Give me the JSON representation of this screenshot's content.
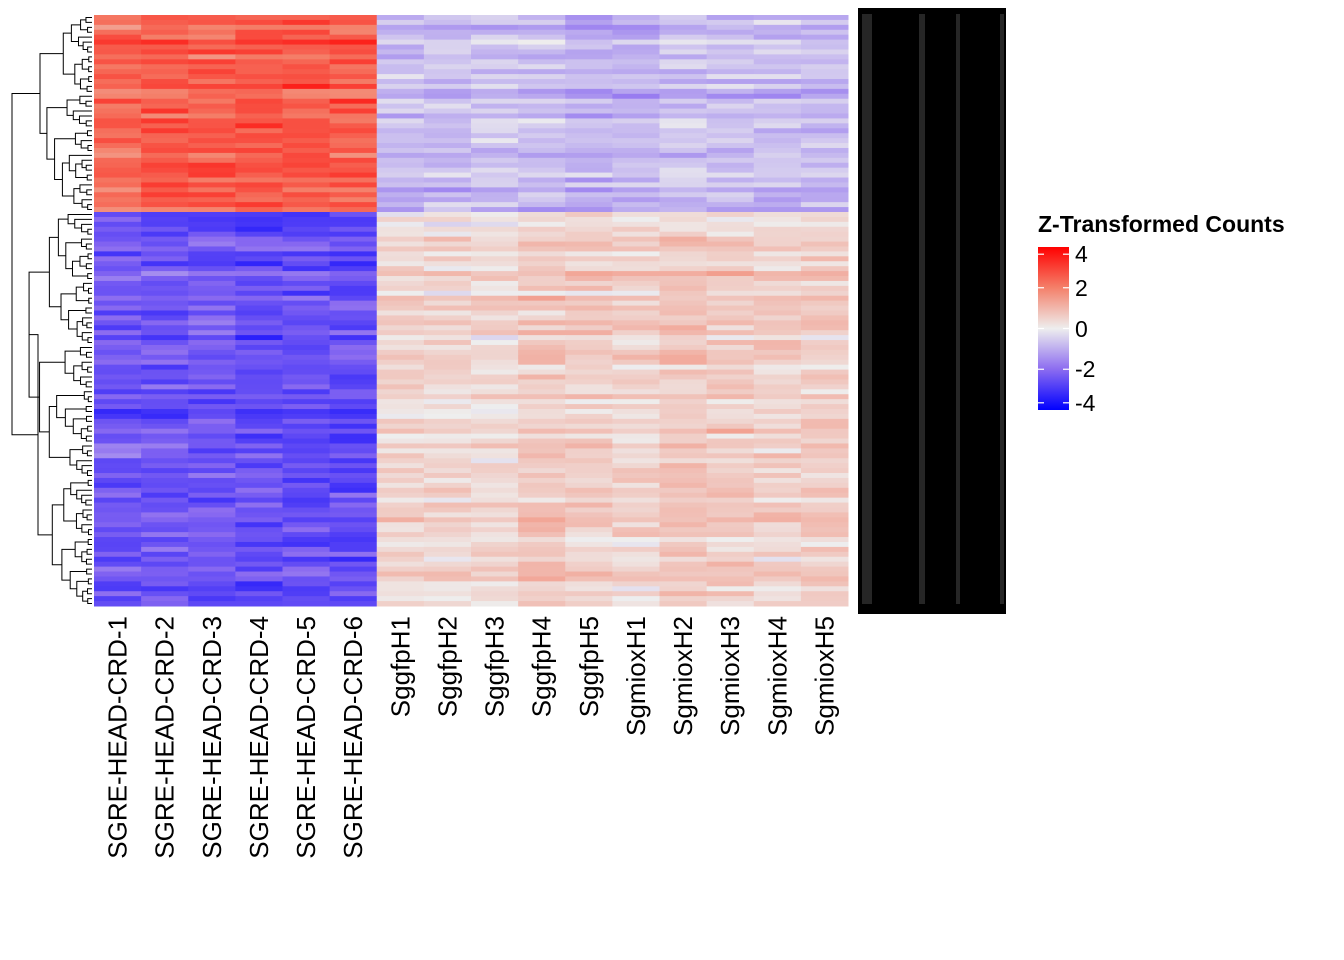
{
  "chart_data": {
    "type": "heatmap",
    "title": "",
    "columns": [
      "SGRE-HEAD-CRD-1",
      "SGRE-HEAD-CRD-2",
      "SGRE-HEAD-CRD-3",
      "SGRE-HEAD-CRD-4",
      "SGRE-HEAD-CRD-5",
      "SGRE-HEAD-CRD-6",
      "SggfpH1",
      "SggfpH2",
      "SggfpH3",
      "SggfpH4",
      "SggfpH5",
      "SgmioxH1",
      "SgmioxH2",
      "SgmioxH3",
      "SgmioxH4",
      "SgmioxH5"
    ],
    "row_labels_legible": false,
    "row_dendrogram": true,
    "row_clusters": [
      {
        "name": "upper",
        "approx_mean_by_column": [
          2.3,
          2.6,
          2.5,
          2.6,
          2.6,
          2.4,
          -0.9,
          -0.8,
          -0.7,
          -0.8,
          -1.0,
          -0.9,
          -0.7,
          -0.8,
          -0.8,
          -0.9
        ]
      },
      {
        "name": "lower",
        "approx_mean_by_column": [
          -2.4,
          -2.4,
          -2.4,
          -2.6,
          -2.5,
          -2.6,
          0.5,
          0.4,
          0.4,
          0.6,
          0.6,
          0.5,
          0.7,
          0.6,
          0.5,
          0.6
        ]
      }
    ],
    "legend": {
      "title": "Z-Transformed Counts",
      "ticks": [
        4,
        2,
        0,
        -2,
        -4
      ],
      "tick_labels": [
        "4",
        "2",
        "0",
        "-2",
        "-4"
      ],
      "range": [
        -4,
        4
      ],
      "placement": "right",
      "colors": {
        "-4": "#0000ff",
        "-2": "#8c6cf0",
        "0": "#eeeeee",
        "2": "#f4806a",
        "4": "#ff0000"
      }
    }
  }
}
